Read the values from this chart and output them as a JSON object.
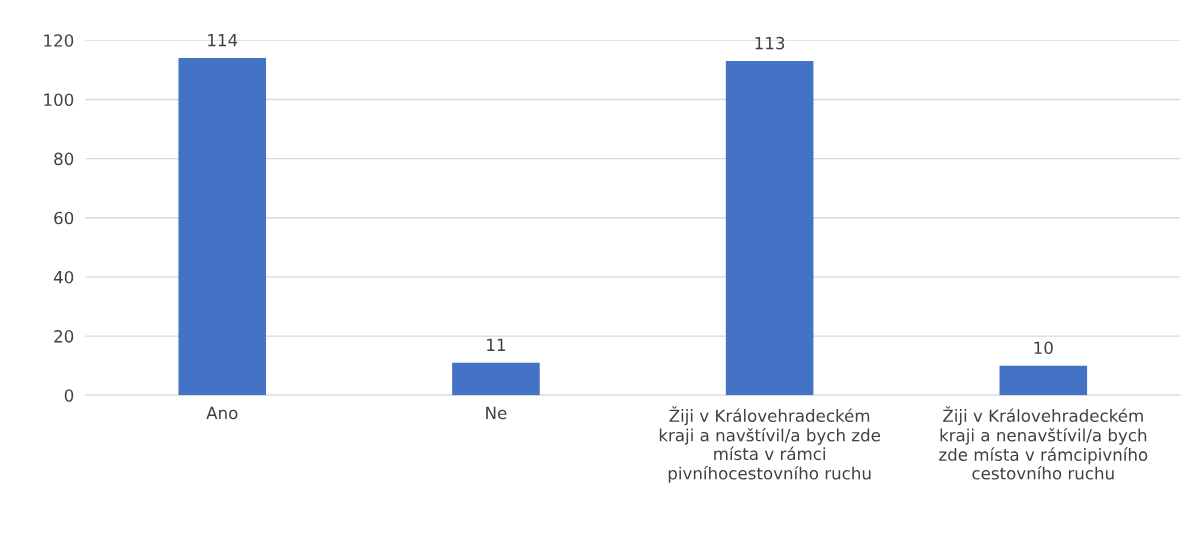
{
  "chart_data": {
    "type": "bar",
    "categories": [
      "Ano",
      "Ne",
      "Žiji v Královehradeckém\nkraji a navštívil/a bych zde\nmísta v rámci\npivníhocestovního ruchu",
      "Žiji v Královehradeckém\nkraji a nenavštívil/a bych\nzde místa v rámcipivního\ncestovního ruchu"
    ],
    "values": [
      114,
      11,
      113,
      10
    ],
    "color": "#4472c4",
    "ylim": [
      0,
      120
    ],
    "yticks": [
      0,
      20,
      40,
      60,
      80,
      100,
      120
    ],
    "grid": "y",
    "data_labels": true,
    "legend": false
  }
}
